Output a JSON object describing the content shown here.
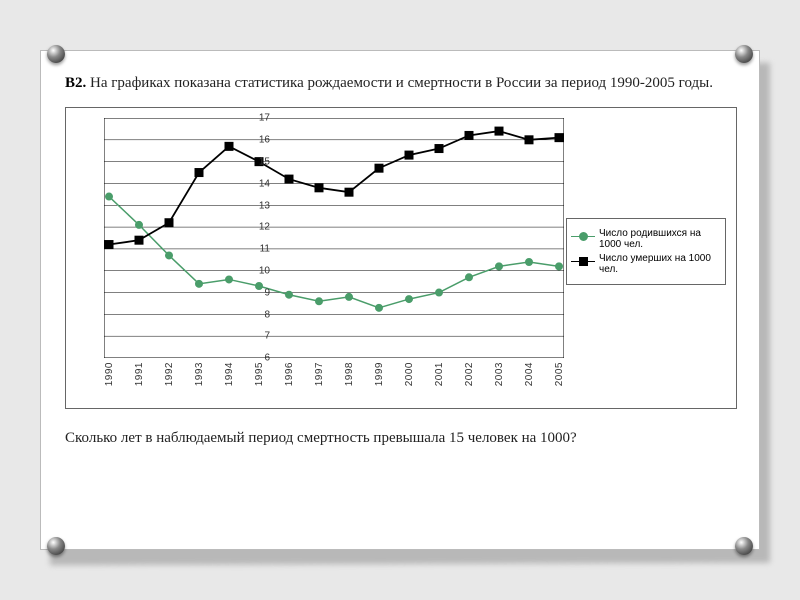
{
  "task_label": "В2.",
  "task_text": "На графиках показана статистика рождаемости и смертности в России за период 1990-2005 годы.",
  "question_text": "Сколько лет в наблюдаемый период смертность превышала 15 человек на 1000?",
  "chart": {
    "type": "line",
    "xlabels": [
      "1990",
      "1991",
      "1992",
      "1993",
      "1994",
      "1995",
      "1996",
      "1997",
      "1998",
      "1999",
      "2000",
      "2001",
      "2002",
      "2003",
      "2004",
      "2005"
    ],
    "ylim": [
      6,
      17
    ],
    "ytick_step": 1,
    "grid_color": "#000000",
    "background_color": "#ffffff",
    "axis_color": "#000000",
    "label_fontsize": 10,
    "series": [
      {
        "name": "Число родившихся на 1000 чел.",
        "color": "#4a9d6a",
        "marker": "circle",
        "marker_size": 7,
        "line_width": 1.5,
        "values": [
          13.4,
          12.1,
          10.7,
          9.4,
          9.6,
          9.3,
          8.9,
          8.6,
          8.8,
          8.3,
          8.7,
          9.0,
          9.7,
          10.2,
          10.4,
          10.2
        ]
      },
      {
        "name": "Число умерших на 1000 чел.",
        "color": "#000000",
        "marker": "square",
        "marker_size": 8,
        "line_width": 1.8,
        "values": [
          11.2,
          11.4,
          12.2,
          14.5,
          15.7,
          15.0,
          14.2,
          13.8,
          13.6,
          14.7,
          15.3,
          15.6,
          16.2,
          16.4,
          16.0,
          16.1
        ]
      }
    ]
  }
}
